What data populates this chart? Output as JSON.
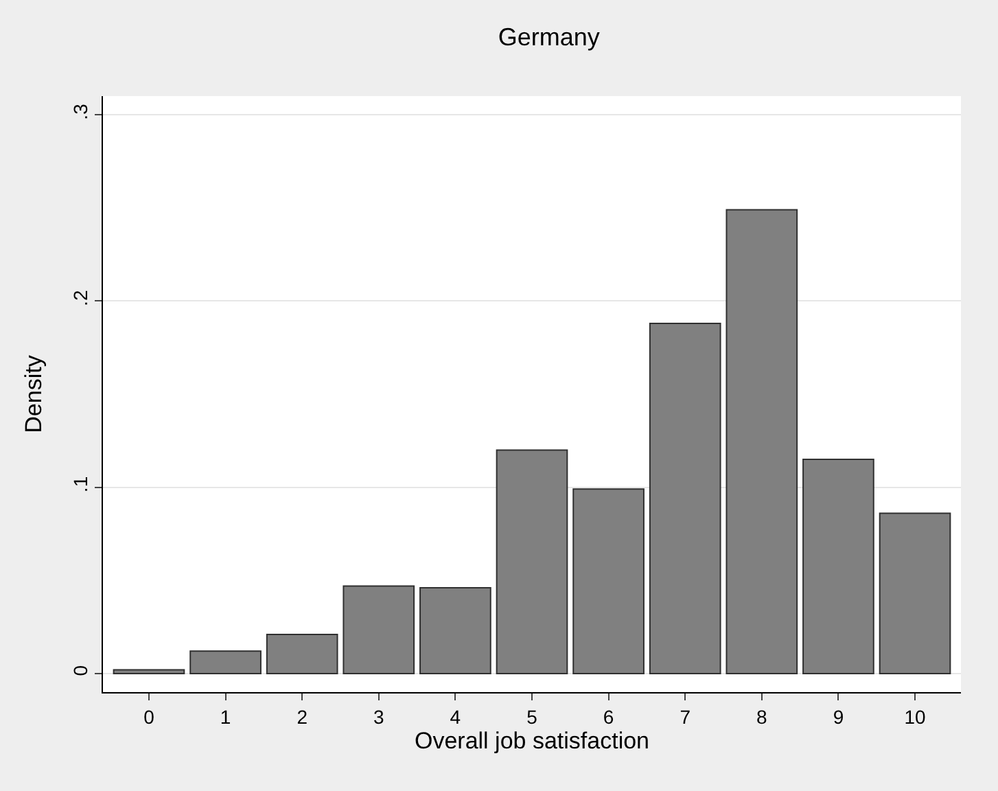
{
  "chart_data": {
    "type": "bar",
    "title": "Germany",
    "xlabel": "Overall job satisfaction",
    "ylabel": "Density",
    "categories": [
      "0",
      "1",
      "2",
      "3",
      "4",
      "5",
      "6",
      "7",
      "8",
      "9",
      "10"
    ],
    "values": [
      0.002,
      0.012,
      0.021,
      0.047,
      0.046,
      0.12,
      0.099,
      0.188,
      0.249,
      0.115,
      0.086
    ],
    "color": "#808080",
    "ylim": [
      -0.01,
      0.31
    ],
    "yticks": [
      0,
      {
        "value": 0.1,
        "label": ".1"
      },
      {
        "value": 0.2,
        "label": ".2"
      },
      {
        "value": 0.3,
        "label": ".3"
      }
    ],
    "grid": "y",
    "legend": false
  }
}
